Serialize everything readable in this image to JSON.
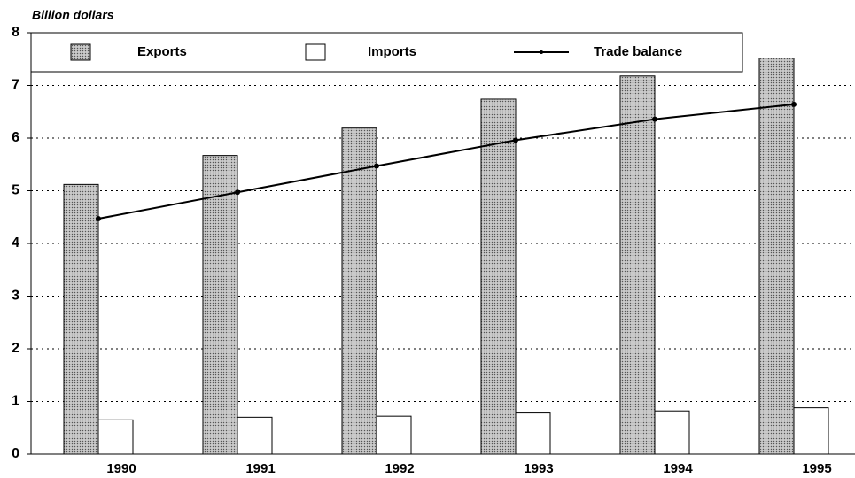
{
  "chart_data": {
    "type": "bar",
    "y_label": "Billion dollars",
    "categories": [
      "1990",
      "1991",
      "1992",
      "1993",
      "1994",
      "1995"
    ],
    "series": [
      {
        "name": "Exports",
        "color": "#b8b8b8",
        "values": [
          5.12,
          5.67,
          6.19,
          6.74,
          7.18,
          7.52
        ]
      },
      {
        "name": "Imports",
        "color": "#ffffff",
        "values": [
          0.65,
          0.7,
          0.72,
          0.78,
          0.82,
          0.88
        ]
      },
      {
        "name": "Trade balance",
        "type": "line",
        "color": "#000000",
        "values": [
          4.47,
          4.97,
          5.47,
          5.96,
          6.36,
          6.64
        ]
      }
    ],
    "ylim": [
      0,
      8
    ],
    "yticks": [
      0,
      1,
      2,
      3,
      4,
      5,
      6,
      7,
      8
    ],
    "grid": true,
    "legend": "top"
  }
}
